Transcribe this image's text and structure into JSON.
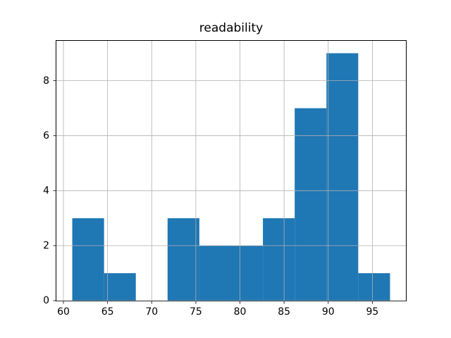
{
  "figure": {
    "background_color": "#ffffff"
  },
  "chart_data": {
    "type": "bar",
    "subtype": "histogram",
    "title": "readability",
    "xlabel": "",
    "ylabel": "",
    "bin_edges": [
      61.0,
      64.6,
      68.2,
      71.8,
      75.4,
      79.0,
      82.6,
      86.2,
      89.8,
      93.4,
      97.0
    ],
    "counts": [
      3,
      1,
      0,
      3,
      2,
      2,
      3,
      7,
      9,
      1
    ],
    "x_ticks": [
      60,
      65,
      70,
      75,
      80,
      85,
      90,
      95
    ],
    "y_ticks": [
      0,
      2,
      4,
      6,
      8
    ],
    "xlim": [
      59.2,
      98.8
    ],
    "ylim": [
      0,
      9.45
    ],
    "grid": true,
    "grid_over_bars": true,
    "legend_position": "none",
    "bar_color": "#1f77b4",
    "grid_color": "#b0b0b0",
    "axis_color": "#000000",
    "tick_label_color": "#000000",
    "title_color": "#000000"
  }
}
